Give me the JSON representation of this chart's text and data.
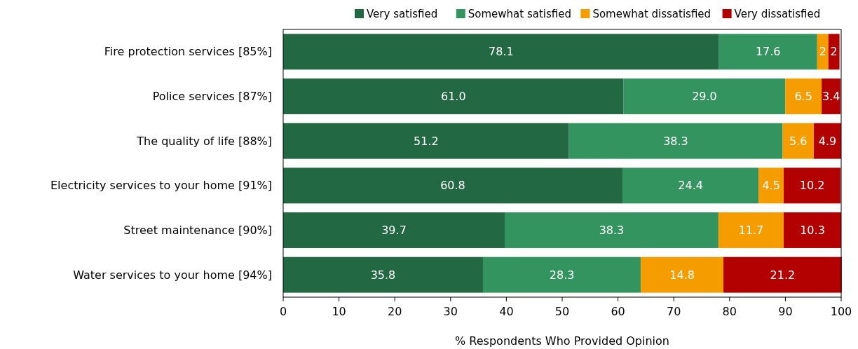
{
  "chart_data": {
    "type": "bar",
    "orientation": "horizontal",
    "stacked": true,
    "categories": [
      "Fire protection services [85%]",
      "Police services [87%]",
      "The quality of life [88%]",
      "Electricity services to your home [91%]",
      "Street maintenance [90%]",
      "Water services to your home [94%]"
    ],
    "series": [
      {
        "name": "Very satisfied",
        "color": "#216843",
        "values": [
          78.1,
          61.0,
          51.2,
          60.8,
          39.7,
          35.8
        ],
        "value_labels": [
          "78.1",
          "61.0",
          "51.2",
          "60.8",
          "39.7",
          "35.8"
        ]
      },
      {
        "name": "Somewhat satisfied",
        "color": "#33945f",
        "values": [
          17.6,
          29.0,
          38.3,
          24.4,
          38.3,
          28.3
        ],
        "value_labels": [
          "17.6",
          "29.0",
          "38.3",
          "24.4",
          "38.3",
          "28.3"
        ]
      },
      {
        "name": "Somewhat dissatisfied",
        "color": "#f59c00",
        "values": [
          2,
          6.5,
          5.6,
          4.5,
          11.7,
          14.8
        ],
        "value_labels": [
          "2",
          "6.5",
          "5.6",
          "4.5",
          "11.7",
          "14.8"
        ]
      },
      {
        "name": "Very dissatisfied",
        "color": "#b30000",
        "values": [
          2,
          3.4,
          4.9,
          10.2,
          10.3,
          21.2
        ],
        "value_labels": [
          "2",
          "3.4",
          "4.9",
          "10.2",
          "10.3",
          "21.2"
        ]
      }
    ],
    "xlabel": "% Respondents Who Provided Opinion",
    "xlim": [
      0,
      100
    ],
    "xticks": [
      0,
      10,
      20,
      30,
      40,
      50,
      60,
      70,
      80,
      90,
      100
    ],
    "legend": "top",
    "grid": false
  }
}
